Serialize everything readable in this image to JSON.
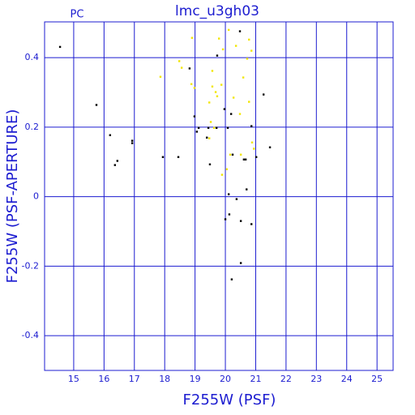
{
  "chart_data": {
    "type": "scatter",
    "title": "lmc_u3gh03",
    "subtitle": "PC",
    "x_label": "F255W (PSF)",
    "y_label": "F255W (PSF-APERTURE)",
    "xlim": [
      14.04,
      25.53
    ],
    "ylim": [
      -0.5,
      0.503
    ],
    "xticks": [
      15,
      16,
      17,
      18,
      19,
      20,
      21,
      22,
      23,
      24,
      25
    ],
    "yticks": [
      -0.4,
      -0.2,
      0,
      0.2,
      0.4
    ],
    "grid": true,
    "axis_color": "#1c1cd0",
    "series": [
      {
        "color": "#000000",
        "x": [
          14.55,
          15.75,
          16.2,
          16.36,
          16.44,
          16.93,
          16.93,
          17.94,
          18.45,
          18.82,
          18.98,
          19.06,
          19.12,
          19.39,
          19.44,
          19.49,
          19.71,
          19.73,
          19.97,
          20.08,
          20.11,
          20.0,
          20.13,
          20.19,
          20.24,
          20.21,
          20.37,
          20.48,
          20.51,
          20.51,
          20.61,
          20.67,
          20.7,
          20.86,
          20.86,
          21.02,
          21.26,
          21.47
        ],
        "values": [
          0.431,
          0.264,
          0.177,
          0.091,
          0.103,
          0.154,
          0.161,
          0.114,
          0.114,
          0.369,
          0.231,
          0.187,
          0.198,
          0.17,
          0.198,
          0.093,
          0.198,
          0.406,
          0.252,
          0.198,
          0.007,
          -0.065,
          -0.051,
          0.238,
          0.121,
          -0.238,
          -0.007,
          0.476,
          -0.07,
          -0.191,
          0.107,
          0.107,
          0.021,
          0.203,
          -0.079,
          0.114,
          0.294,
          0.142
        ]
      },
      {
        "color": "#f2e600",
        "x": [
          18.9,
          18.48,
          18.56,
          17.86,
          18.88,
          18.98,
          19.57,
          19.57,
          19.68,
          19.73,
          19.47,
          19.52,
          19.47,
          19.79,
          19.92,
          19.87,
          20.11,
          20.35,
          20.27,
          20.59,
          20.72,
          20.78,
          20.86,
          20.78,
          19.89,
          20.51,
          20.88,
          20.94,
          20.05,
          20.16,
          19.63,
          20.48
        ],
        "values": [
          0.457,
          0.39,
          0.371,
          0.345,
          0.324,
          0.313,
          0.362,
          0.317,
          0.301,
          0.289,
          0.271,
          0.215,
          0.168,
          0.455,
          0.424,
          0.322,
          0.48,
          0.434,
          0.285,
          0.343,
          0.397,
          0.452,
          0.42,
          0.273,
          0.063,
          0.121,
          0.156,
          0.138,
          0.079,
          0.121,
          0.198,
          0.238
        ]
      }
    ]
  }
}
